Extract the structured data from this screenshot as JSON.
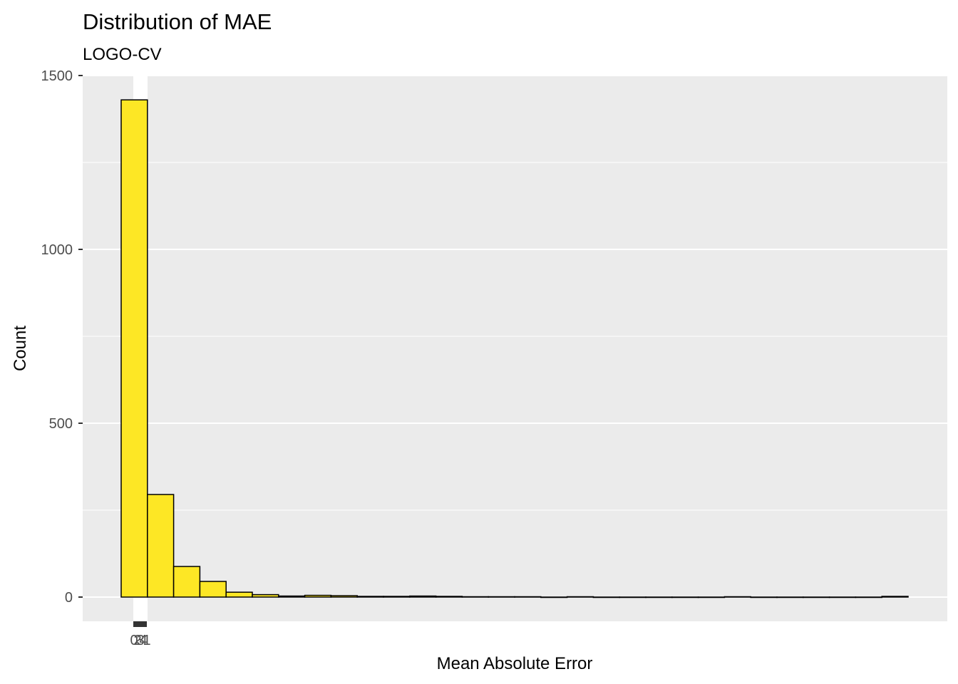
{
  "chart_data": {
    "type": "bar",
    "title": "Distribution of MAE",
    "subtitle": "LOGO-CV",
    "xlabel": "Mean Absolute Error",
    "ylabel": "Count",
    "ylim": [
      0,
      1500
    ],
    "yticks": [
      0,
      500,
      1000,
      1500
    ],
    "x_tick_labels_overlapping": [
      "0",
      "2",
      "3",
      "4",
      "1"
    ],
    "grid": true,
    "legend": "none",
    "colors": {
      "bar_fill": "#fde725",
      "bar_stroke": "#000000",
      "panel_bg": "#ebebeb",
      "grid": "#ffffff"
    },
    "bins": 30,
    "values": [
      1430,
      295,
      88,
      45,
      14,
      7,
      3,
      5,
      4,
      2,
      2,
      3,
      2,
      1,
      1,
      1,
      0,
      1,
      0,
      0,
      0,
      0,
      0,
      1,
      0,
      0,
      0,
      0,
      0,
      2
    ]
  }
}
